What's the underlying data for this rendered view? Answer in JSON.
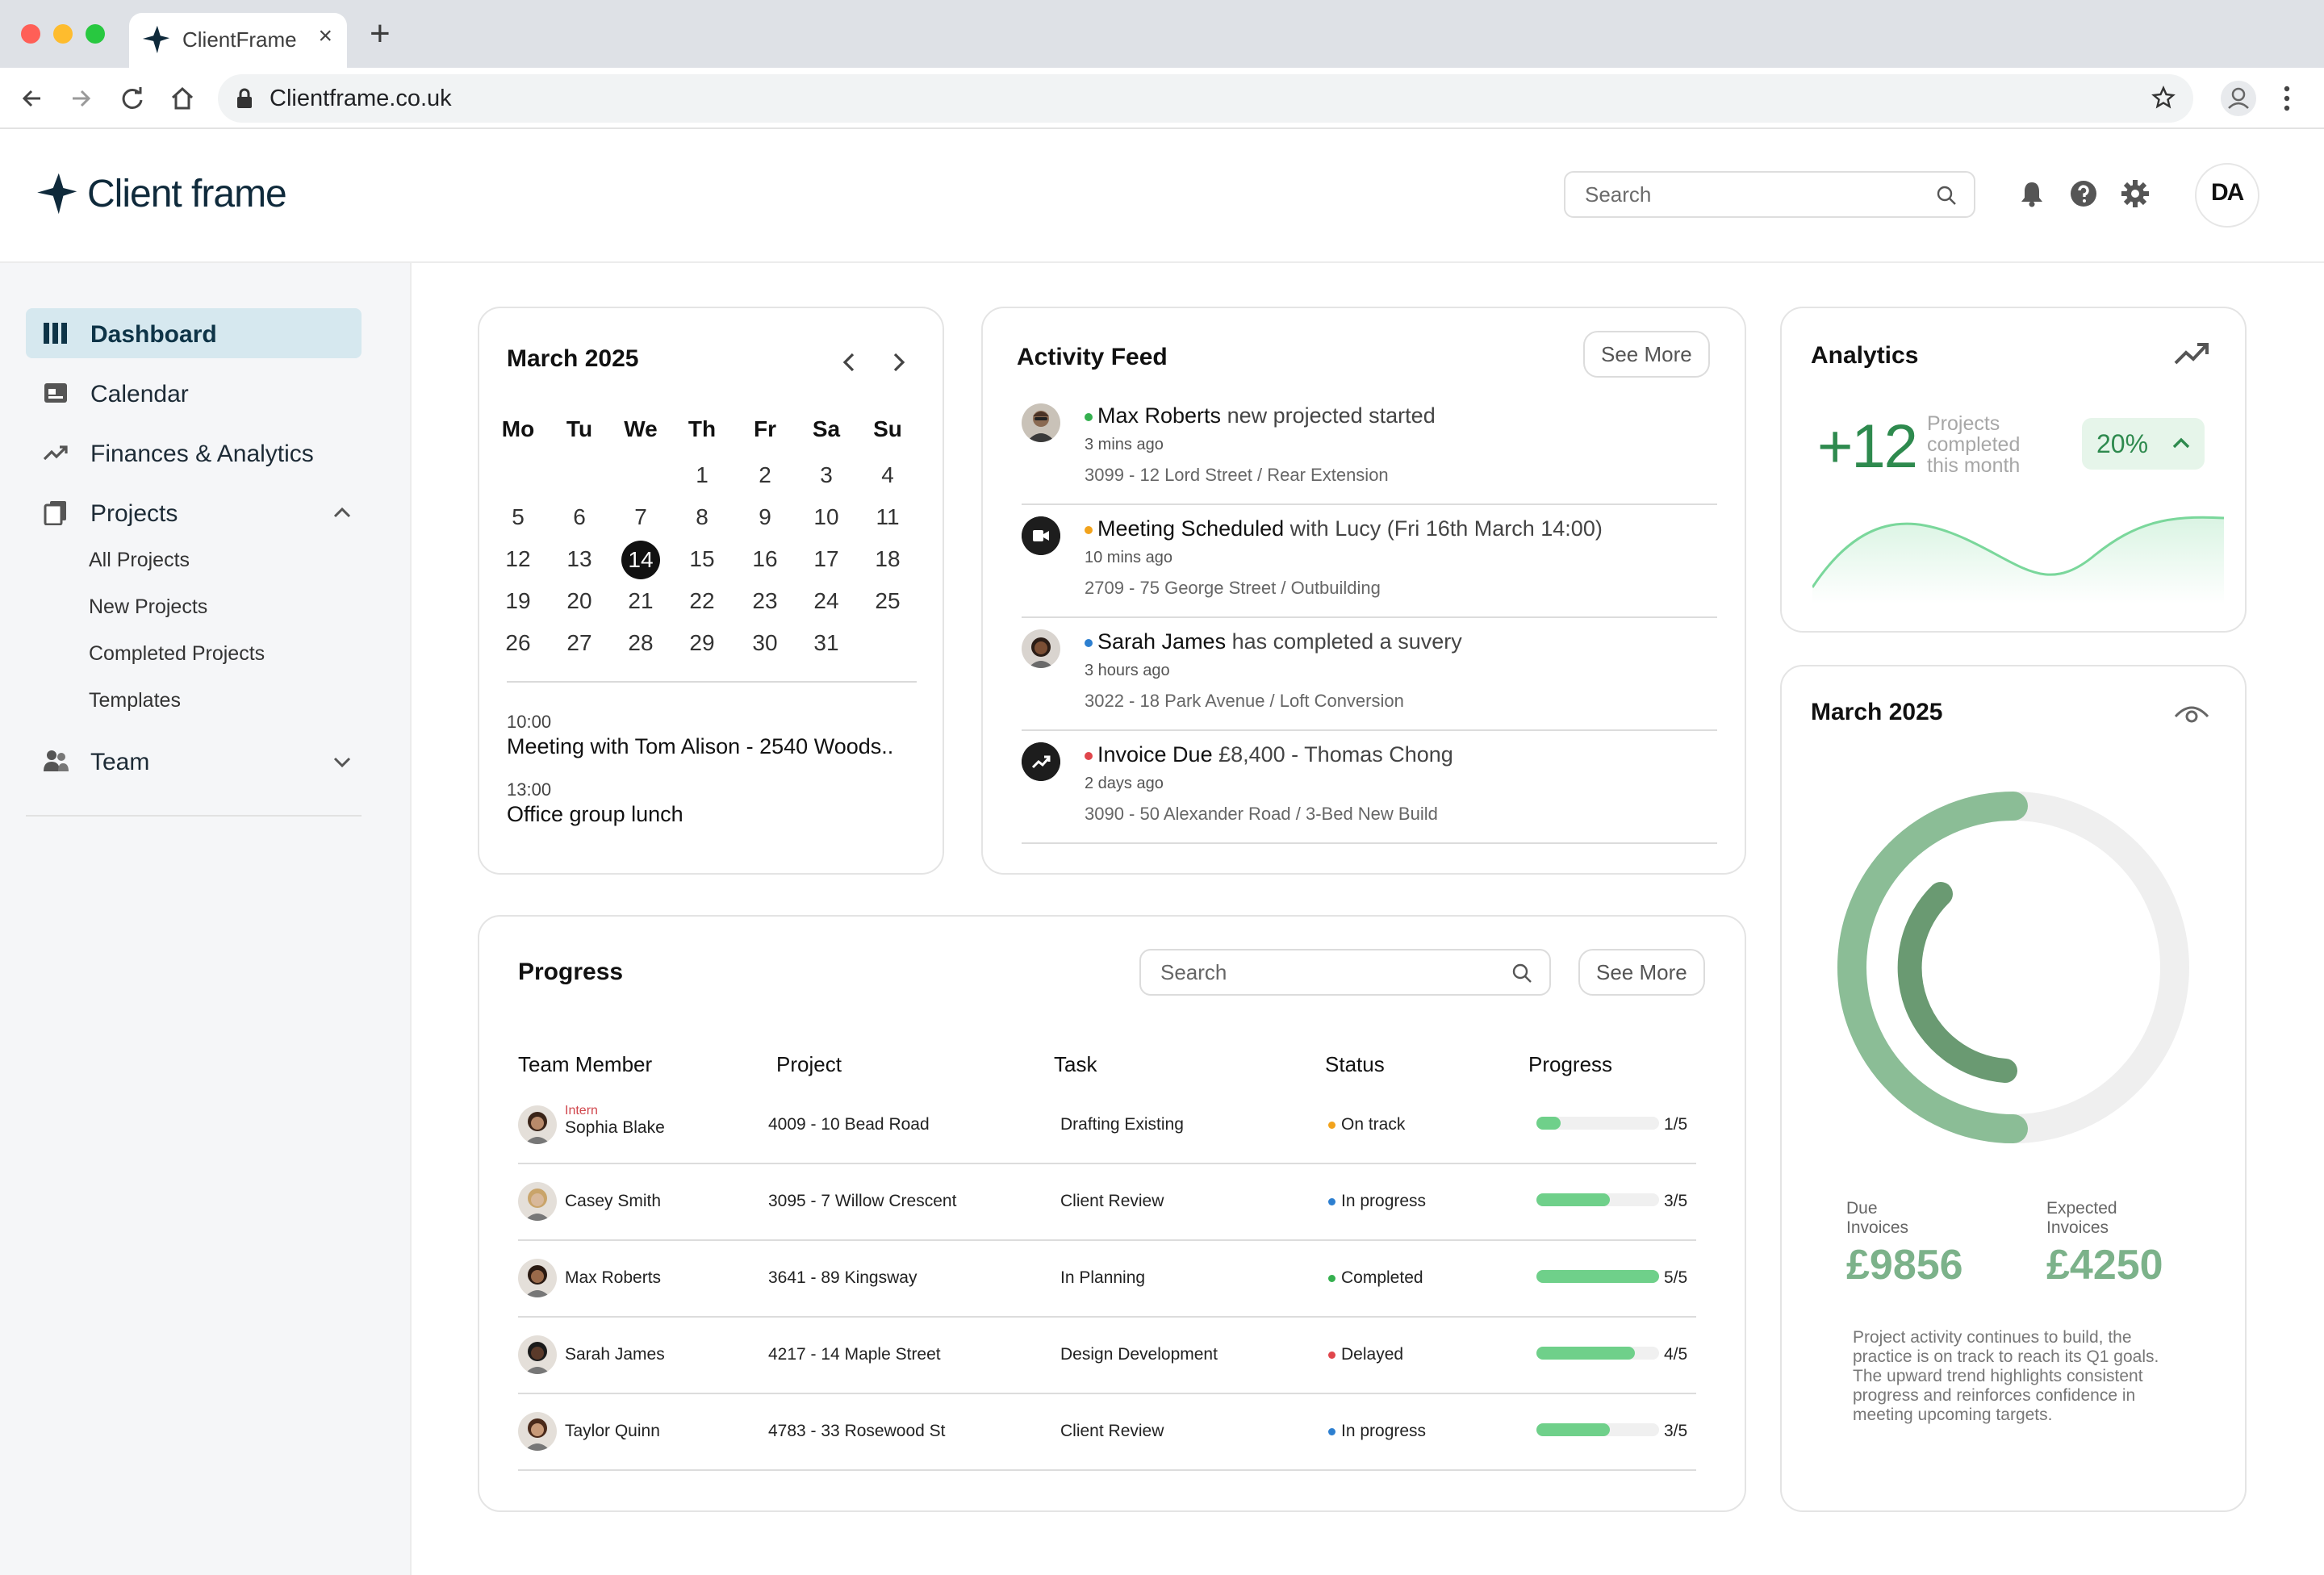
{
  "browser": {
    "tab_title": "ClientFrame",
    "tab_close": "×",
    "new_tab": "+",
    "url": "Clientframe.co.uk"
  },
  "header": {
    "brand": "Client frame",
    "search_placeholder": "Search",
    "avatar_initials": "DA"
  },
  "sidebar": {
    "items": [
      {
        "label": "Dashboard",
        "icon": "dashboard-icon"
      },
      {
        "label": "Calendar",
        "icon": "calendar-icon"
      },
      {
        "label": "Finances & Analytics",
        "icon": "trend-icon"
      },
      {
        "label": "Projects",
        "icon": "projects-icon"
      },
      {
        "label": "Team",
        "icon": "team-icon"
      }
    ],
    "project_subitems": [
      "All Projects",
      "New Projects",
      "Completed Projects",
      "Templates"
    ]
  },
  "calendar": {
    "month": "March 2025",
    "weekdays": [
      "Mo",
      "Tu",
      "We",
      "Th",
      "Fr",
      "Sa",
      "Su"
    ],
    "weeks": [
      [
        "",
        "",
        "",
        "1",
        "2",
        "3",
        "4"
      ],
      [
        "5",
        "6",
        "7",
        "8",
        "9",
        "10",
        "11"
      ],
      [
        "12",
        "13",
        "14",
        "15",
        "16",
        "17",
        "18"
      ],
      [
        "19",
        "20",
        "21",
        "22",
        "23",
        "24",
        "25"
      ],
      [
        "26",
        "27",
        "28",
        "29",
        "30",
        "31",
        ""
      ]
    ],
    "today": "14",
    "events": [
      {
        "time": "10:00",
        "title": "Meeting with Tom Alison - 2540 Woods.."
      },
      {
        "time": "13:00",
        "title": "Office group lunch"
      }
    ]
  },
  "activity": {
    "title": "Activity Feed",
    "see_more": "See More",
    "items": [
      {
        "actor": "Max Roberts",
        "text": " new projected started",
        "when": "3 mins ago",
        "address": "3099 - 12 Lord Street / Rear Extension",
        "dot": "#35b04f",
        "avatar": "photo"
      },
      {
        "actor": "Meeting Scheduled",
        "text": " with Lucy (Fri 16th March 14:00)",
        "when": "10 mins ago",
        "address": "2709 - 75 George Street / Outbuilding",
        "dot": "#f2a31c",
        "avatar": "meeting-icon"
      },
      {
        "actor": "Sarah James",
        "text": " has completed a suvery",
        "when": "3 hours ago",
        "address": "3022 - 18 Park Avenue / Loft Conversion",
        "dot": "#2d7fd0",
        "avatar": "photo"
      },
      {
        "actor": "Invoice Due",
        "text": " £8,400 - Thomas Chong",
        "when": "2 days ago",
        "address": "3090 - 50 Alexander Road / 3-Bed New Build",
        "dot": "#e0464c",
        "avatar": "invoice-icon"
      }
    ]
  },
  "analytics": {
    "title": "Analytics",
    "value": "+12",
    "label": "Projects completed this month",
    "percent": "20%"
  },
  "donut": {
    "title": "March 2025",
    "due_label": "Due Invoices",
    "due_value": "£9856",
    "expected_label": "Expected Invoices",
    "expected_value": "£4250",
    "note": "Project activity continues to build, the practice is on track to reach its Q1 goals. The upward trend highlights consistent progress and reinforces confidence in meeting upcoming targets."
  },
  "progress": {
    "title": "Progress",
    "search_placeholder": "Search",
    "see_more": "See More",
    "columns": [
      "Team Member",
      "Project",
      "Task",
      "Status",
      "Progress"
    ],
    "rows": [
      {
        "role": "Intern",
        "name": "Sophia Blake",
        "project": "4009 - 10 Bead Road",
        "task": "Drafting Existing",
        "status": "On track",
        "status_color": "#f2a31c",
        "done": 1,
        "total": 5,
        "fraction": "1/5"
      },
      {
        "role": "",
        "name": "Casey Smith",
        "project": "3095 - 7 Willow Crescent",
        "task": "Client Review",
        "status": "In progress",
        "status_color": "#2d7fd0",
        "done": 3,
        "total": 5,
        "fraction": "3/5"
      },
      {
        "role": "",
        "name": "Max Roberts",
        "project": "3641 - 89 Kingsway",
        "task": "In Planning",
        "status": "Completed",
        "status_color": "#35b04f",
        "done": 5,
        "total": 5,
        "fraction": "5/5"
      },
      {
        "role": "",
        "name": "Sarah James",
        "project": "4217 - 14 Maple Street",
        "task": "Design Development",
        "status": "Delayed",
        "status_color": "#e0464c",
        "done": 4,
        "total": 5,
        "fraction": "4/5"
      },
      {
        "role": "",
        "name": "Taylor Quinn",
        "project": "4783 - 33 Rosewood St",
        "task": "Client Review",
        "status": "In progress",
        "status_color": "#2d7fd0",
        "done": 3,
        "total": 5,
        "fraction": "3/5"
      }
    ]
  },
  "colors": {
    "brand": "#0f2a3b",
    "accent_green": "#2e8a4e",
    "sidebar_active": "#d6e8ef"
  }
}
